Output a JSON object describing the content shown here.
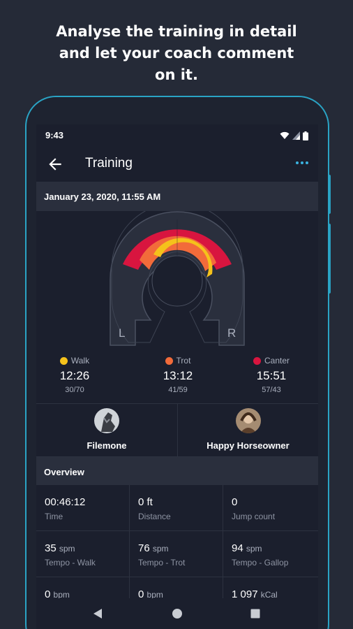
{
  "headline": {
    "line1": "Analyse the training in detail",
    "line2": "and let your coach comment",
    "line3": "on it."
  },
  "status_bar": {
    "time": "9:43"
  },
  "app_bar": {
    "title": "Training"
  },
  "session": {
    "date": "January 23, 2020, 11:55 AM"
  },
  "arena": {
    "left_label": "L",
    "right_label": "R"
  },
  "gaits": [
    {
      "name": "Walk",
      "time": "12:26",
      "split": "30/70",
      "color": "#f5c21b"
    },
    {
      "name": "Trot",
      "time": "13:12",
      "split": "41/59",
      "color": "#f26b3a"
    },
    {
      "name": "Canter",
      "time": "15:51",
      "split": "57/43",
      "color": "#d8153f"
    }
  ],
  "people": [
    {
      "name": "Filemone"
    },
    {
      "name": "Happy Horseowner"
    }
  ],
  "overview": {
    "title": "Overview",
    "stats": [
      {
        "value": "00:46:12",
        "unit": "",
        "label": "Time"
      },
      {
        "value": "0 ft",
        "unit": "",
        "label": "Distance"
      },
      {
        "value": "0",
        "unit": "",
        "label": "Jump count"
      },
      {
        "value": "35",
        "unit": "spm",
        "label": "Tempo - Walk"
      },
      {
        "value": "76",
        "unit": "spm",
        "label": "Tempo - Trot"
      },
      {
        "value": "94",
        "unit": "spm",
        "label": "Tempo - Gallop"
      },
      {
        "value": "0",
        "unit": "bpm",
        "label": ""
      },
      {
        "value": "0",
        "unit": "bpm",
        "label": ""
      },
      {
        "value": "1 097",
        "unit": "kCal",
        "label": ""
      }
    ]
  }
}
